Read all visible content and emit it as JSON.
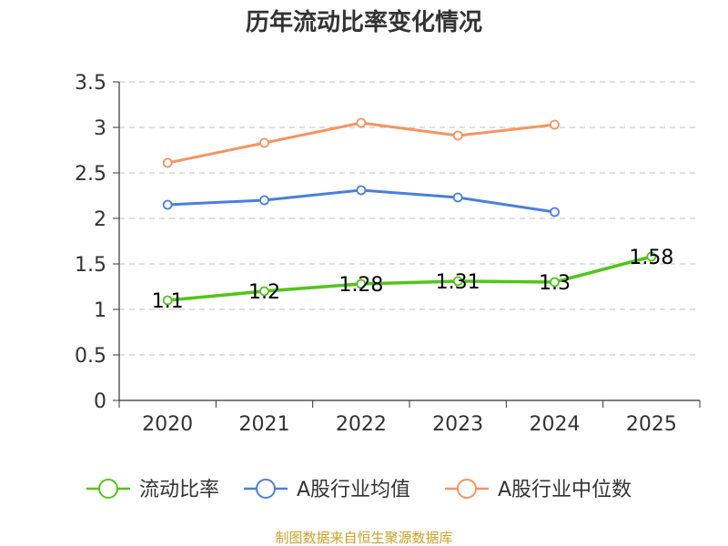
{
  "chart_data": {
    "type": "line",
    "title": "历年流动比率变化情况",
    "categories": [
      "2020",
      "2021",
      "2022",
      "2023",
      "2024",
      "2025"
    ],
    "ylim": [
      0,
      3.5
    ],
    "yticks": [
      "0",
      "0.5",
      "1",
      "1.5",
      "2",
      "2.5",
      "3",
      "3.5"
    ],
    "grid": true,
    "legend_position": "bottom",
    "series": [
      {
        "name": "流动比率",
        "color": "#52c41a",
        "values": [
          1.1,
          1.2,
          1.28,
          1.31,
          1.3,
          1.58
        ],
        "labels": [
          "1.1",
          "1.2",
          "1.28",
          "1.31",
          "1.3",
          "1.58"
        ]
      },
      {
        "name": "A股行业均值",
        "color": "#4a7fdc",
        "values": [
          2.15,
          2.2,
          2.31,
          2.23,
          2.07,
          null
        ]
      },
      {
        "name": "A股行业中位数",
        "color": "#f59462",
        "values": [
          2.61,
          2.83,
          3.05,
          2.91,
          3.03,
          null
        ]
      }
    ],
    "source": "制图数据来自恒生聚源数据库"
  }
}
